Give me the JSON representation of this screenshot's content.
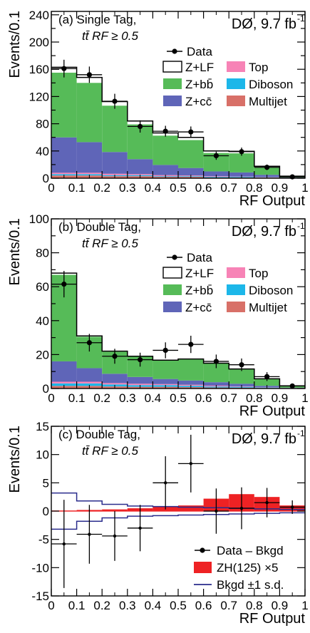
{
  "colors": {
    "zlf": "#ffffff",
    "zbb": "#56bb58",
    "zcc": "#5f65b8",
    "top": "#f783b6",
    "diboson": "#1cb7e9",
    "multijet": "#d87068",
    "zh": "#ee2224",
    "band": "#2a2c8c"
  },
  "legend_labels": {
    "data": "Data",
    "zlf": "Z+LF",
    "zbb": "Z+bb̄",
    "zcc": "Z+cc̄",
    "top": "Top",
    "diboson": "Diboson",
    "multijet": "Multijet",
    "diff": "Data – Bkgd",
    "zh": "ZH(125) ×5",
    "band": "Bkgd ±1 s.d."
  },
  "experiment": "DØ, 9.7 fb",
  "experiment_sup": "-1",
  "chart_data": [
    {
      "type": "bar",
      "panel": "(a)",
      "title": "Single Tag,",
      "subtitle": "tt̄  RF ≥ 0.5",
      "xlabel": "RF Output",
      "ylabel": "Events/0.1",
      "xlim": [
        0,
        1
      ],
      "ylim": [
        0,
        245
      ],
      "yticks": [
        0,
        20,
        40,
        60,
        80,
        100,
        120,
        140,
        160,
        180,
        200,
        220,
        240
      ],
      "ytick_labels": [
        "0",
        "",
        "40",
        "",
        "80",
        "",
        "120",
        "",
        "160",
        "",
        "200",
        "",
        "240"
      ],
      "xticks": [
        0,
        0.1,
        0.2,
        0.3,
        0.4,
        0.5,
        0.6,
        0.7,
        0.8,
        0.9,
        1
      ],
      "xtick_labels": [
        "0",
        "0.1",
        "0.2",
        "0.3",
        "0.4",
        "0.5",
        "0.6",
        "0.7",
        "0.8",
        "0.9",
        "1"
      ],
      "bins": [
        0,
        0.1,
        0.2,
        0.3,
        0.4,
        0.5,
        0.6,
        0.7,
        0.8,
        0.9,
        1
      ],
      "stack": [
        {
          "key": "multijet",
          "values": [
            4,
            4,
            3,
            3,
            2,
            2,
            1,
            1,
            1,
            0.3
          ]
        },
        {
          "key": "diboson",
          "values": [
            2,
            2,
            1.5,
            1.5,
            1,
            1,
            1,
            1,
            0.5,
            0.2
          ]
        },
        {
          "key": "top",
          "values": [
            2,
            2,
            2,
            1.5,
            1.5,
            1,
            1,
            0.5,
            0.5,
            0.2
          ]
        },
        {
          "key": "zcc",
          "values": [
            52,
            45,
            32,
            22,
            15,
            11,
            7,
            6,
            3,
            0.3
          ]
        },
        {
          "key": "zbb",
          "values": [
            95,
            87,
            68,
            51,
            43,
            41,
            27,
            28,
            11,
            1.5
          ]
        },
        {
          "key": "zlf",
          "values": [
            8,
            8,
            6,
            5,
            4,
            4,
            3,
            3,
            1.5,
            0.5
          ]
        }
      ],
      "data_points": {
        "x": [
          0.05,
          0.15,
          0.25,
          0.35,
          0.45,
          0.55,
          0.65,
          0.75,
          0.85,
          0.95
        ],
        "y": [
          161,
          152,
          113,
          76,
          69,
          68,
          33,
          39,
          16,
          2
        ],
        "err": [
          13,
          12,
          11,
          9,
          8,
          8,
          6,
          6,
          4,
          1.5
        ]
      }
    },
    {
      "type": "bar",
      "panel": "(b)",
      "title": "Double Tag,",
      "subtitle": "tt̄  RF ≥ 0.5",
      "xlabel": "RF Output",
      "ylabel": "Events/0.1",
      "xlim": [
        0,
        1
      ],
      "ylim": [
        0,
        100
      ],
      "yticks": [
        0,
        10,
        20,
        30,
        40,
        50,
        60,
        70,
        80,
        90,
        100
      ],
      "ytick_labels": [
        "0",
        "",
        "20",
        "",
        "40",
        "",
        "60",
        "",
        "80",
        "",
        "100"
      ],
      "xticks": [
        0,
        0.1,
        0.2,
        0.3,
        0.4,
        0.5,
        0.6,
        0.7,
        0.8,
        0.9,
        1
      ],
      "xtick_labels": [
        "0",
        "0.1",
        "0.2",
        "0.3",
        "0.4",
        "0.5",
        "0.6",
        "0.7",
        "0.8",
        "0.9",
        "1"
      ],
      "bins": [
        0,
        0.1,
        0.2,
        0.3,
        0.4,
        0.5,
        0.6,
        0.7,
        0.8,
        0.9,
        1
      ],
      "stack": [
        {
          "key": "multijet",
          "values": [
            1.5,
            1.5,
            1.2,
            1,
            1,
            0.8,
            0.6,
            0.5,
            0.3,
            0.1
          ]
        },
        {
          "key": "diboson",
          "values": [
            1.5,
            1.5,
            1.2,
            1,
            1,
            0.8,
            0.6,
            0.5,
            0.3,
            0.1
          ]
        },
        {
          "key": "top",
          "values": [
            1,
            1,
            0.8,
            0.8,
            0.6,
            0.6,
            0.5,
            0.3,
            0.2,
            0.1
          ]
        },
        {
          "key": "zcc",
          "values": [
            12,
            8,
            5.5,
            4,
            3,
            2.5,
            2,
            1.5,
            0.8,
            0.2
          ]
        },
        {
          "key": "zbb",
          "values": [
            51,
            18.5,
            13,
            12,
            10.9,
            12.5,
            11,
            8.5,
            4,
            1
          ]
        },
        {
          "key": "zlf",
          "values": [
            1,
            0.5,
            0.3,
            0.2,
            0.2,
            0.2,
            0.2,
            0.2,
            0.1,
            0.1
          ]
        }
      ],
      "data_points": {
        "x": [
          0.05,
          0.15,
          0.25,
          0.35,
          0.45,
          0.55,
          0.65,
          0.75,
          0.85,
          0.95
        ],
        "y": [
          61.5,
          27,
          19,
          17,
          22.5,
          26,
          16,
          14,
          7,
          1.5
        ],
        "err": [
          7.8,
          5.2,
          4.4,
          4.1,
          4.7,
          5.1,
          4.0,
          3.7,
          2.6,
          1.2
        ]
      }
    },
    {
      "type": "bar",
      "panel": "(c)",
      "title": "Double Tag,",
      "subtitle": "tt̄  RF ≥ 0.5",
      "xlabel": "RF Output",
      "ylabel": "Events/0.1",
      "xlim": [
        0,
        1
      ],
      "ylim": [
        -15,
        15
      ],
      "yticks": [
        -15,
        -10,
        -5,
        0,
        5,
        10,
        15
      ],
      "ytick_labels": [
        "-15",
        "-10",
        "-5",
        "0",
        "5",
        "10",
        "15"
      ],
      "xticks": [
        0,
        0.1,
        0.2,
        0.3,
        0.4,
        0.5,
        0.6,
        0.7,
        0.8,
        0.9,
        1
      ],
      "xtick_labels": [
        "0",
        "0.1",
        "0.2",
        "0.3",
        "0.4",
        "0.5",
        "0.6",
        "0.7",
        "0.8",
        "0.9",
        "1"
      ],
      "bins": [
        0,
        0.1,
        0.2,
        0.3,
        0.4,
        0.5,
        0.6,
        0.7,
        0.8,
        0.9,
        1
      ],
      "signal": {
        "key": "zh",
        "values": [
          0.1,
          0.2,
          0.3,
          0.5,
          0.8,
          1.0,
          2.2,
          3.0,
          2.5,
          1.0
        ]
      },
      "band": {
        "key": "band",
        "upper": [
          3.2,
          1.8,
          1.2,
          0.9,
          0.8,
          0.7,
          0.6,
          0.5,
          0.4,
          0.3
        ],
        "lower": [
          -3.2,
          -1.8,
          -1.2,
          -0.9,
          -0.8,
          -0.7,
          -0.6,
          -0.5,
          -0.4,
          -0.3
        ]
      },
      "data_points": {
        "x": [
          0.05,
          0.15,
          0.25,
          0.35,
          0.45,
          0.55,
          0.65,
          0.75,
          0.85,
          0.95
        ],
        "y": [
          -5.8,
          -4.1,
          -4.4,
          -3.0,
          5.0,
          8.4,
          0.0,
          0.5,
          1.5,
          0.7
        ],
        "err": [
          7.8,
          5.2,
          4.4,
          4.1,
          4.7,
          5.1,
          4.0,
          3.7,
          2.6,
          1.2
        ]
      }
    }
  ]
}
